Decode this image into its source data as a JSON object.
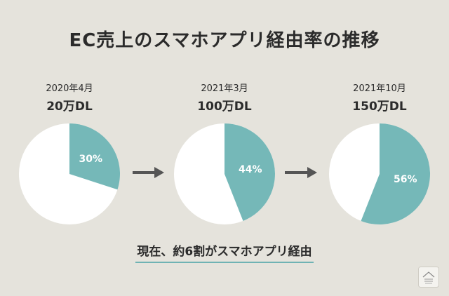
{
  "page": {
    "title": "EC売上のスマホアプリ経由率の推移",
    "summary": "現在、約6割がスマホアプリ経由"
  },
  "colors": {
    "background": "#e5e3dc",
    "app_share": "#75b8b8",
    "rest": "#ffffff",
    "arrow": "#555555",
    "underline": "#6fb3b4"
  },
  "icons": [
    "right-arrow-icon",
    "house-logo-icon"
  ],
  "chart_data": [
    {
      "type": "pie",
      "date": "2020年4月",
      "downloads": "20万DL",
      "value": 30,
      "label": "30%"
    },
    {
      "type": "pie",
      "date": "2021年3月",
      "downloads": "100万DL",
      "value": 44,
      "label": "44%"
    },
    {
      "type": "pie",
      "date": "2021年10月",
      "downloads": "150万DL",
      "value": 56,
      "label": "56%"
    }
  ]
}
